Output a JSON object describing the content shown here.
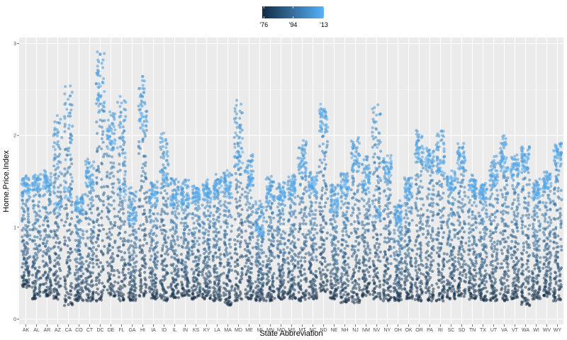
{
  "chart_data": {
    "type": "scatter",
    "subtype": "jittered strip plot",
    "title": "",
    "xlabel": "State Abbreviation",
    "ylabel": "Home.Price.Index",
    "ylim": [
      0,
      3
    ],
    "y_ticks": [
      0,
      1,
      2,
      3
    ],
    "grid": true,
    "legend": {
      "placement": "top",
      "type": "colorbar",
      "variable": "year",
      "range": [
        1975,
        2013
      ],
      "tick_values": [
        1976,
        1994,
        2013
      ],
      "tick_labels": [
        "'76",
        "'94",
        "'13"
      ],
      "color_low": "#132B43",
      "color_high": "#56B1F7"
    },
    "categories": [
      "AK",
      "AL",
      "AR",
      "AZ",
      "CA",
      "CO",
      "CT",
      "DC",
      "DE",
      "FL",
      "GA",
      "HI",
      "IA",
      "ID",
      "IL",
      "IN",
      "KS",
      "KY",
      "LA",
      "MA",
      "MD",
      "ME",
      "MI",
      "MN",
      "MO",
      "MS",
      "MT",
      "NC",
      "ND",
      "NE",
      "NH",
      "NJ",
      "NM",
      "NV",
      "NY",
      "OH",
      "OK",
      "OR",
      "PA",
      "RI",
      "SC",
      "SD",
      "TN",
      "TX",
      "UT",
      "VA",
      "VT",
      "WA",
      "WI",
      "WV",
      "WY"
    ],
    "series_by_state": [
      {
        "state": "AK",
        "start": 0.35,
        "end": 1.5,
        "peak": 1.55
      },
      {
        "state": "AL",
        "start": 0.22,
        "end": 1.55,
        "peak": 1.57
      },
      {
        "state": "AR",
        "start": 0.25,
        "end": 1.55,
        "peak": 1.6
      },
      {
        "state": "AZ",
        "start": 0.22,
        "end": 1.3,
        "peak": 2.2
      },
      {
        "state": "CA",
        "start": 0.15,
        "end": 1.45,
        "peak": 2.53
      },
      {
        "state": "CO",
        "start": 0.2,
        "end": 1.3,
        "peak": 1.35
      },
      {
        "state": "CT",
        "start": 0.2,
        "end": 1.6,
        "peak": 1.73
      },
      {
        "state": "DC",
        "start": 0.2,
        "end": 2.5,
        "peak": 2.9
      },
      {
        "state": "DE",
        "start": 0.25,
        "end": 2.05,
        "peak": 2.25
      },
      {
        "state": "FL",
        "start": 0.2,
        "end": 1.45,
        "peak": 2.42
      },
      {
        "state": "GA",
        "start": 0.2,
        "end": 1.15,
        "peak": 1.42
      },
      {
        "state": "HI",
        "start": 0.25,
        "end": 2.3,
        "peak": 2.62
      },
      {
        "state": "IA",
        "start": 0.22,
        "end": 1.4,
        "peak": 1.5
      },
      {
        "state": "ID",
        "start": 0.2,
        "end": 1.6,
        "peak": 2.01
      },
      {
        "state": "IL",
        "start": 0.23,
        "end": 1.35,
        "peak": 1.55
      },
      {
        "state": "IN",
        "start": 0.25,
        "end": 1.35,
        "peak": 1.52
      },
      {
        "state": "KS",
        "start": 0.22,
        "end": 1.42,
        "peak": 1.45
      },
      {
        "state": "KY",
        "start": 0.22,
        "end": 1.45,
        "peak": 1.5
      },
      {
        "state": "LA",
        "start": 0.2,
        "end": 1.5,
        "peak": 1.55
      },
      {
        "state": "MA",
        "start": 0.15,
        "end": 1.5,
        "peak": 1.62
      },
      {
        "state": "MD",
        "start": 0.2,
        "end": 1.85,
        "peak": 2.35
      },
      {
        "state": "ME",
        "start": 0.22,
        "end": 1.6,
        "peak": 1.77
      },
      {
        "state": "MI",
        "start": 0.2,
        "end": 1.0,
        "peak": 1.27
      },
      {
        "state": "MN",
        "start": 0.2,
        "end": 1.4,
        "peak": 1.55
      },
      {
        "state": "MO",
        "start": 0.22,
        "end": 1.4,
        "peak": 1.48
      },
      {
        "state": "MS",
        "start": 0.22,
        "end": 1.5,
        "peak": 1.57
      },
      {
        "state": "MT",
        "start": 0.2,
        "end": 1.75,
        "peak": 1.95
      },
      {
        "state": "NC",
        "start": 0.22,
        "end": 1.52,
        "peak": 1.6
      },
      {
        "state": "ND",
        "start": 0.3,
        "end": 2.3,
        "peak": 2.3
      },
      {
        "state": "NE",
        "start": 0.22,
        "end": 1.3,
        "peak": 1.48
      },
      {
        "state": "NH",
        "start": 0.18,
        "end": 1.5,
        "peak": 1.6
      },
      {
        "state": "NJ",
        "start": 0.18,
        "end": 1.8,
        "peak": 1.98
      },
      {
        "state": "NM",
        "start": 0.25,
        "end": 1.55,
        "peak": 1.77
      },
      {
        "state": "NV",
        "start": 0.22,
        "end": 1.2,
        "peak": 2.33
      },
      {
        "state": "NY",
        "start": 0.2,
        "end": 1.72,
        "peak": 1.77
      },
      {
        "state": "OH",
        "start": 0.2,
        "end": 1.15,
        "peak": 1.27
      },
      {
        "state": "OK",
        "start": 0.22,
        "end": 1.45,
        "peak": 1.55
      },
      {
        "state": "OR",
        "start": 0.2,
        "end": 1.9,
        "peak": 2.05
      },
      {
        "state": "PA",
        "start": 0.2,
        "end": 1.82,
        "peak": 1.85
      },
      {
        "state": "RI",
        "start": 0.2,
        "end": 1.75,
        "peak": 2.05
      },
      {
        "state": "SC",
        "start": 0.22,
        "end": 1.55,
        "peak": 1.6
      },
      {
        "state": "SD",
        "start": 0.25,
        "end": 1.82,
        "peak": 1.9
      },
      {
        "state": "TN",
        "start": 0.22,
        "end": 1.5,
        "peak": 1.55
      },
      {
        "state": "TX",
        "start": 0.2,
        "end": 1.45,
        "peak": 1.48
      },
      {
        "state": "UT",
        "start": 0.2,
        "end": 1.6,
        "peak": 1.75
      },
      {
        "state": "VA",
        "start": 0.2,
        "end": 1.8,
        "peak": 1.98
      },
      {
        "state": "VT",
        "start": 0.22,
        "end": 1.72,
        "peak": 1.77
      },
      {
        "state": "WA",
        "start": 0.15,
        "end": 1.8,
        "peak": 1.9
      },
      {
        "state": "WI",
        "start": 0.22,
        "end": 1.45,
        "peak": 1.5
      },
      {
        "state": "WV",
        "start": 0.25,
        "end": 1.55,
        "peak": 1.6
      },
      {
        "state": "WY",
        "start": 0.2,
        "end": 1.88,
        "peak": 1.92
      }
    ]
  }
}
